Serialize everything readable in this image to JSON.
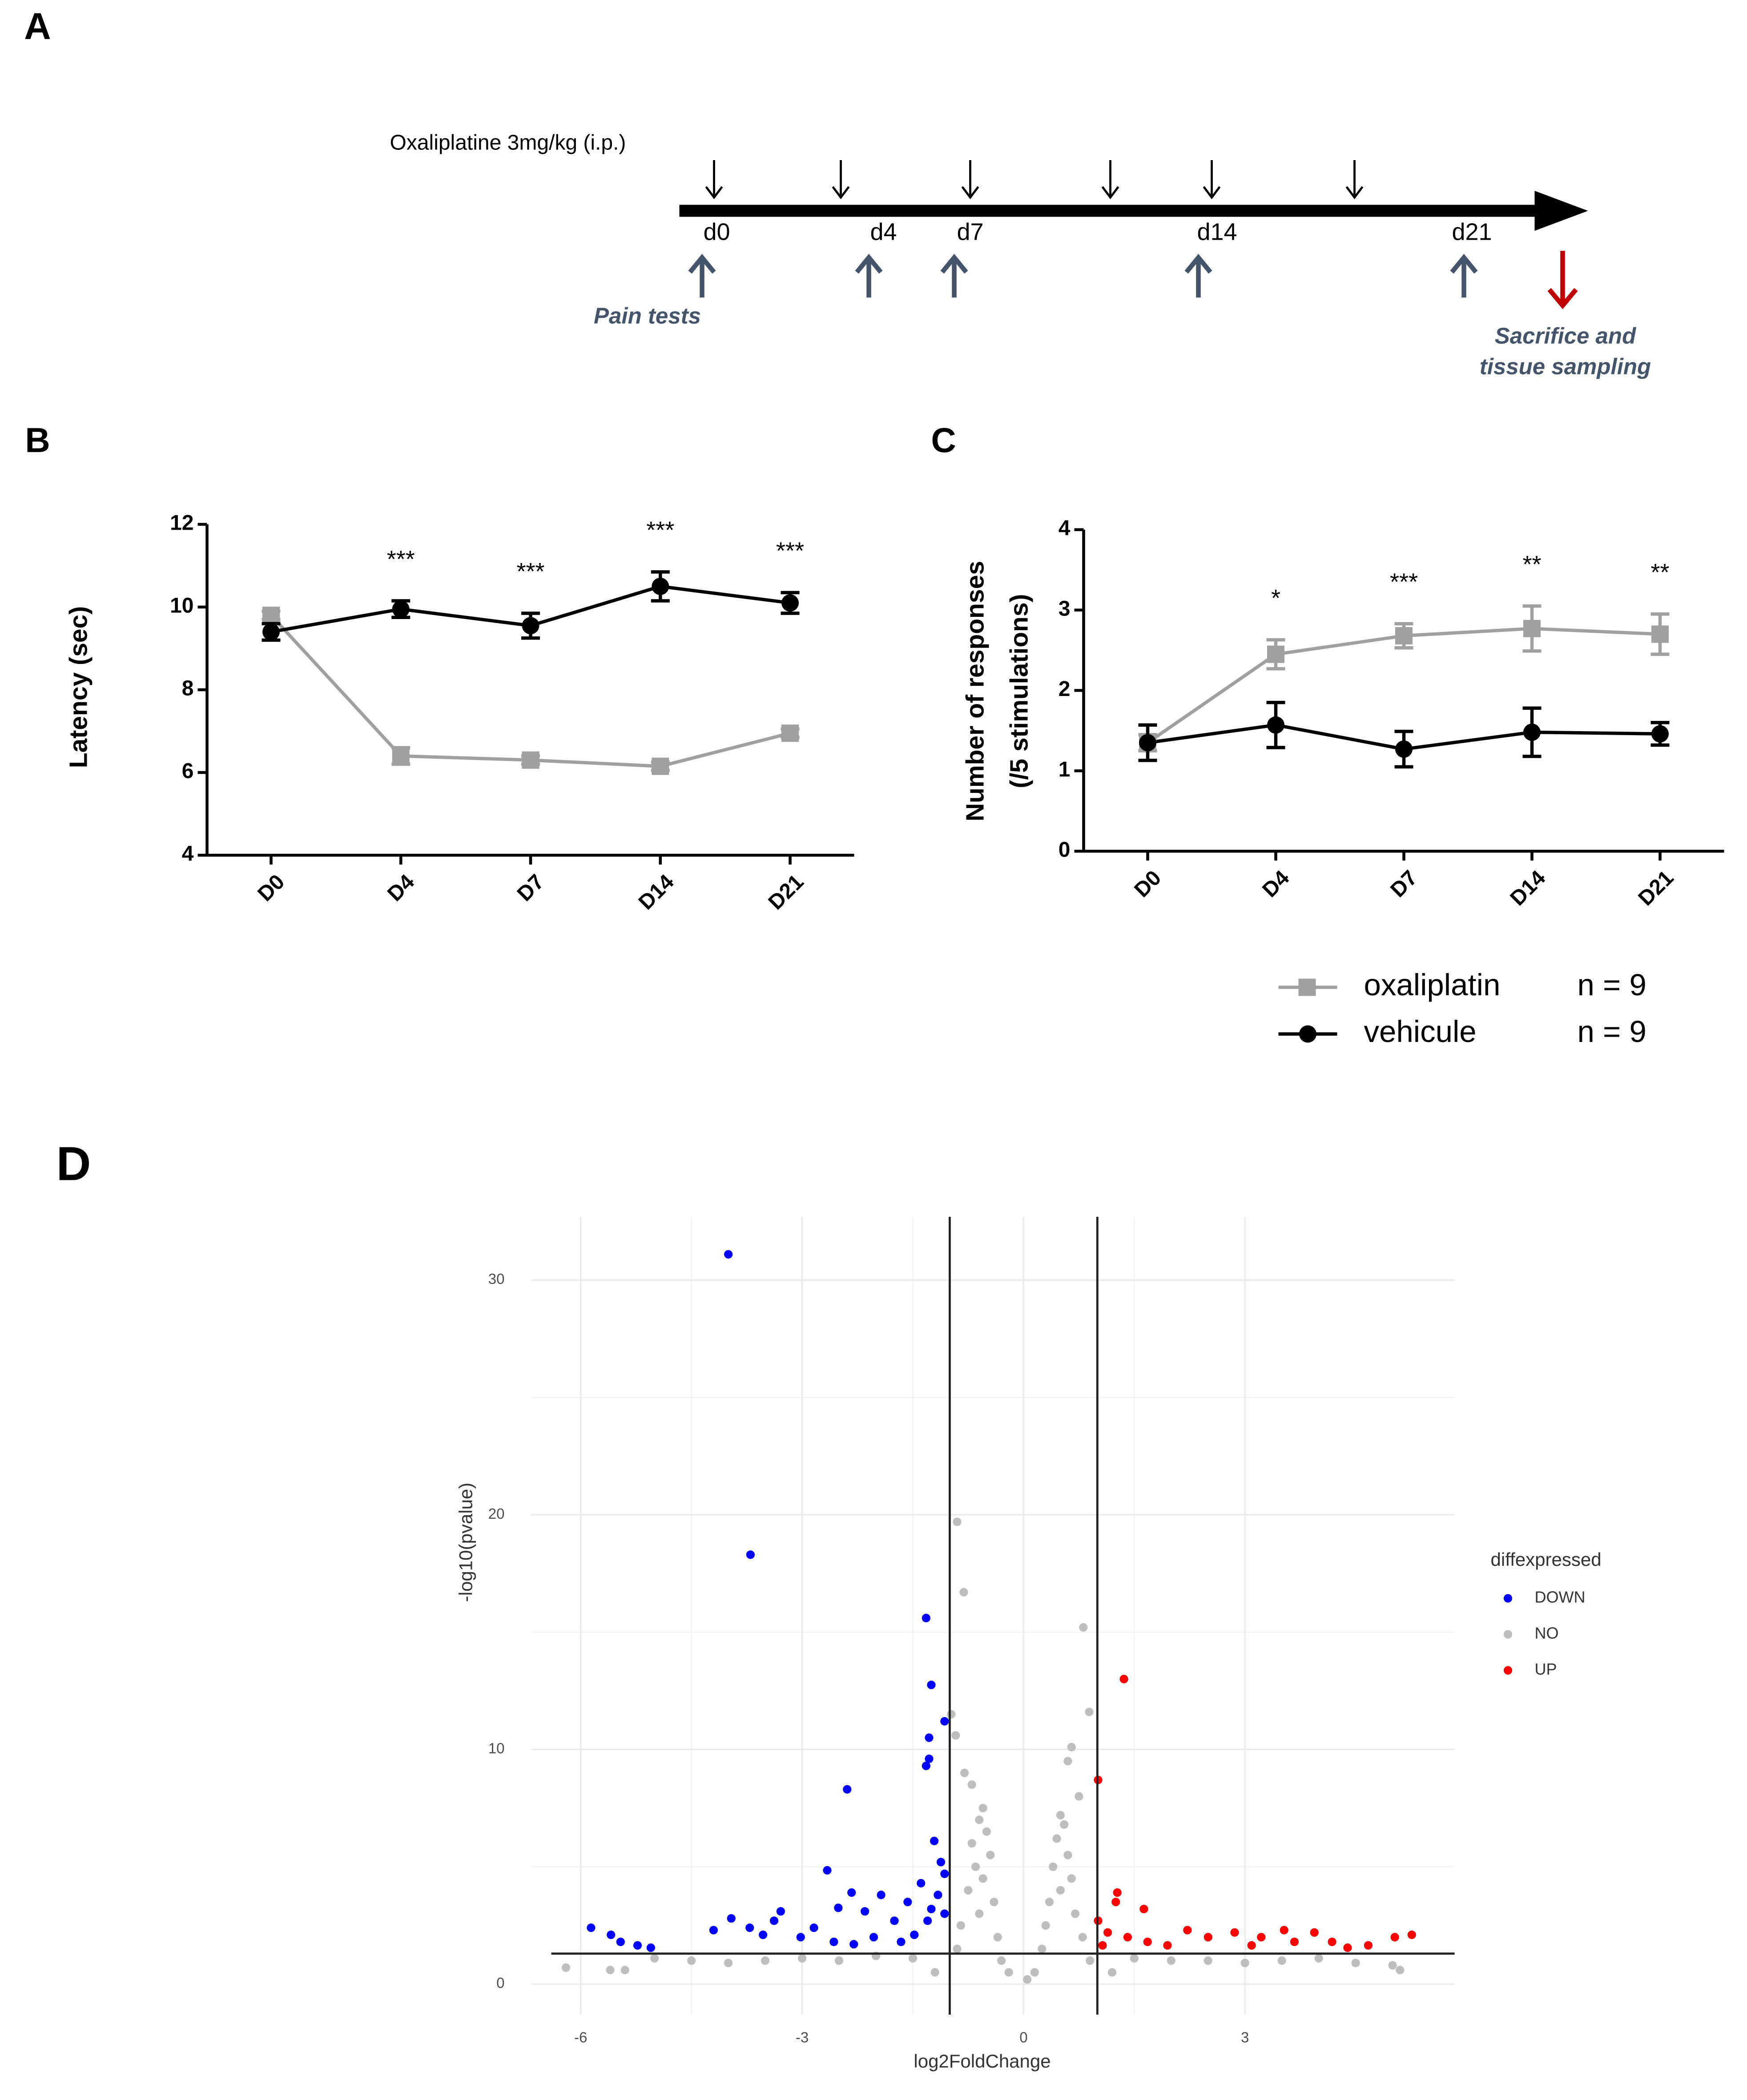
{
  "panel_labels": [
    "A",
    "B",
    "C",
    "D"
  ],
  "timeline": {
    "drug_label": "Oxaliplatine 3mg/kg (i.p.)",
    "days": [
      "d0",
      "d4",
      "d7",
      "d14",
      "d21"
    ],
    "tests_label": "Pain tests",
    "end_label": [
      "Sacrifice and",
      "tissue sampling"
    ]
  },
  "chart_data": [
    {
      "type": "line",
      "ylabel": "Latency (sec)",
      "categories": [
        "D0",
        "D4",
        "D7",
        "D14",
        "D21"
      ],
      "ylim": [
        4,
        12
      ],
      "yticks": [
        4,
        6,
        8,
        10,
        12
      ],
      "annotations": [
        null,
        "***",
        "***",
        "***",
        "***"
      ],
      "series": [
        {
          "color": "#a0a0a0",
          "marker": "square",
          "values": [
            9.8,
            6.4,
            6.3,
            6.15,
            6.95
          ],
          "errors": [
            0.1,
            0.2,
            0.1,
            0.1,
            0.1
          ]
        },
        {
          "color": "#000000",
          "marker": "circle",
          "values": [
            9.4,
            9.95,
            9.55,
            10.5,
            10.1
          ],
          "errors": [
            0.2,
            0.2,
            0.3,
            0.35,
            0.25
          ]
        }
      ]
    },
    {
      "type": "line",
      "ylabel": [
        "Number of responses",
        "(/5 stimulations)"
      ],
      "categories": [
        "D0",
        "D4",
        "D7",
        "D14",
        "D21"
      ],
      "ylim": [
        0,
        4
      ],
      "yticks": [
        0,
        1,
        2,
        3,
        4
      ],
      "annotations": [
        null,
        "*",
        "***",
        "**",
        "**"
      ],
      "legend": "bottom-right",
      "series": [
        {
          "name": "oxaliplatin",
          "note": "n = 9",
          "color": "#a0a0a0",
          "marker": "square",
          "values": [
            1.35,
            2.45,
            2.68,
            2.77,
            2.7
          ],
          "errors": [
            0.1,
            0.18,
            0.15,
            0.28,
            0.25
          ]
        },
        {
          "name": "vehicule",
          "note": "n = 9",
          "color": "#000000",
          "marker": "circle",
          "values": [
            1.35,
            1.57,
            1.27,
            1.48,
            1.46
          ],
          "errors": [
            0.22,
            0.28,
            0.22,
            0.3,
            0.14
          ]
        }
      ]
    },
    {
      "type": "scatter",
      "xlabel": "log2FoldChange",
      "ylabel": "-log10(pvalue)",
      "xlim": [
        -6.67,
        5.84
      ],
      "ylim": [
        -1.3,
        32.7
      ],
      "xticks": [
        -6,
        -3,
        0,
        3
      ],
      "yticks": [
        0,
        10,
        20,
        30
      ],
      "grid": true,
      "vlines": [
        -1,
        1
      ],
      "hline": 1.3,
      "legend_title": "diffexpressed",
      "legend": "right",
      "series": [
        {
          "name": "DOWN",
          "color": "#0000ff",
          "x": [
            -4.0,
            -3.7,
            -1.32,
            -1.25,
            -1.07,
            -1.28,
            -1.28,
            -1.32,
            -2.39,
            -2.66,
            -2.33,
            -2.51,
            -3.29,
            -3.38,
            -3.96,
            -5.86,
            -5.59,
            -5.46,
            -5.23,
            -5.05,
            -4.2,
            -3.71,
            -3.53,
            -3.02,
            -2.84,
            -2.15,
            -1.93,
            -1.75,
            -1.57,
            -1.39,
            -1.21,
            -1.12,
            -1.16,
            -1.3,
            -1.48,
            -1.66,
            -2.03,
            -2.3,
            -2.57,
            -1.07,
            -1.07,
            -1.25
          ],
          "values": [
            31.1,
            18.3,
            15.6,
            12.75,
            11.2,
            10.5,
            9.6,
            9.3,
            8.3,
            4.85,
            3.9,
            3.25,
            3.1,
            2.7,
            2.8,
            2.4,
            2.1,
            1.8,
            1.65,
            1.55,
            2.3,
            2.4,
            2.1,
            2.0,
            2.4,
            3.1,
            3.8,
            2.7,
            3.5,
            4.3,
            6.1,
            5.2,
            3.8,
            2.7,
            2.1,
            1.8,
            2.0,
            1.7,
            1.8,
            4.7,
            3.0,
            3.2
          ]
        },
        {
          "name": "NO",
          "color": "#bebebe",
          "x": [
            -0.9,
            -0.81,
            0.81,
            0.89,
            -0.98,
            -0.92,
            0.65,
            0.6,
            -0.55,
            -0.6,
            -0.5,
            -0.7,
            -0.45,
            -0.65,
            -0.55,
            -0.75,
            -0.4,
            -0.6,
            -0.85,
            -0.35,
            -0.9,
            -0.3,
            -0.2,
            -0.7,
            -0.8,
            0.5,
            0.55,
            0.45,
            0.6,
            0.4,
            0.65,
            0.5,
            0.35,
            0.7,
            0.3,
            0.8,
            0.25,
            0.9,
            0.15,
            0.05,
            0.75,
            -6.2,
            -5.6,
            -5.4,
            -5.0,
            -4.5,
            -4.0,
            -3.5,
            -3.0,
            -2.5,
            -2.0,
            -1.5,
            1.5,
            2.0,
            2.5,
            3.0,
            3.5,
            4.0,
            4.5,
            5.0,
            5.1,
            -1.2,
            1.2
          ],
          "values": [
            19.7,
            16.7,
            15.2,
            11.6,
            11.5,
            10.6,
            10.1,
            9.5,
            7.5,
            7.0,
            6.5,
            6.0,
            5.5,
            5.0,
            4.5,
            4.0,
            3.5,
            3.0,
            2.5,
            2.0,
            1.5,
            1.0,
            0.5,
            8.5,
            9.0,
            7.2,
            6.8,
            6.2,
            5.5,
            5.0,
            4.5,
            4.0,
            3.5,
            3.0,
            2.5,
            2.0,
            1.5,
            1.0,
            0.5,
            0.2,
            8.0,
            0.7,
            0.6,
            0.6,
            1.1,
            1.0,
            0.9,
            1.0,
            1.1,
            1.0,
            1.2,
            1.1,
            1.1,
            1.0,
            1.0,
            0.9,
            1.0,
            1.1,
            0.9,
            0.8,
            0.6,
            0.5,
            0.5
          ]
        },
        {
          "name": "UP",
          "color": "#ff0000",
          "x": [
            1.36,
            1.01,
            1.27,
            1.25,
            1.63,
            1.01,
            1.14,
            1.41,
            1.68,
            2.22,
            2.5,
            2.86,
            3.22,
            3.53,
            3.94,
            4.18,
            4.39,
            4.67,
            5.03,
            5.26,
            1.07,
            1.95,
            3.67,
            3.09
          ],
          "values": [
            13.0,
            8.7,
            3.9,
            3.5,
            3.2,
            2.7,
            2.2,
            2.0,
            1.8,
            2.3,
            2.0,
            2.2,
            2.0,
            2.3,
            2.2,
            1.8,
            1.55,
            1.65,
            2.0,
            2.1,
            1.65,
            1.65,
            1.8,
            1.65
          ]
        }
      ]
    }
  ]
}
